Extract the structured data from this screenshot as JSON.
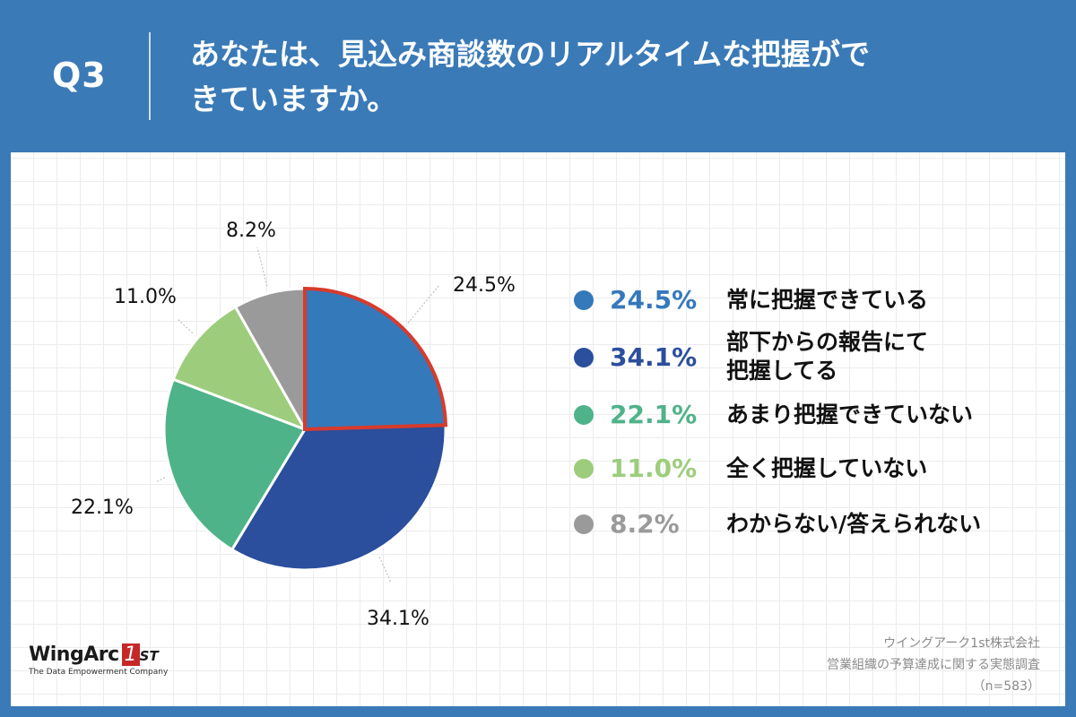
{
  "header": {
    "q_label": "Q3",
    "question_line1": "あなたは、見込み商談数のリアルタイムな把握がで",
    "question_line2": "きていますか。"
  },
  "chart_data": {
    "type": "pie",
    "title": "あなたは、見込み商談数のリアルタイムな把握ができていますか。",
    "slices": [
      {
        "label": "常に把握できている",
        "value": 24.5,
        "display": "24.5%",
        "color": "#3479ba",
        "highlight": true
      },
      {
        "label": "部下からの報告にて把握してる",
        "value": 34.1,
        "display": "34.1%",
        "color": "#2b4e9d",
        "highlight": false
      },
      {
        "label": "あまり把握できていない",
        "value": 22.1,
        "display": "22.1%",
        "color": "#4fb389",
        "highlight": false
      },
      {
        "label": "全く把握していない",
        "value": 11.0,
        "display": "11.0%",
        "color": "#9dcd7c",
        "highlight": false
      },
      {
        "label": "わからない/答えられない",
        "value": 8.2,
        "display": "8.2%",
        "color": "#9a9a9a",
        "highlight": false
      }
    ],
    "highlight_color": "#d83b2c",
    "n": 583
  },
  "legend": {
    "items": [
      {
        "pct": "24.5%",
        "line1": "常に把握できている",
        "line2": "",
        "color": "#3479ba"
      },
      {
        "pct": "34.1%",
        "line1": "部下からの報告にて",
        "line2": "把握してる",
        "color": "#2b4e9d"
      },
      {
        "pct": "22.1%",
        "line1": "あまり把握できていない",
        "line2": "",
        "color": "#4fb389"
      },
      {
        "pct": "11.0%",
        "line1": "全く把握していない",
        "line2": "",
        "color": "#9dcd7c"
      },
      {
        "pct": "8.2%",
        "line1": "わからない/答えられない",
        "line2": "",
        "color": "#9a9a9a"
      }
    ]
  },
  "logo": {
    "name": "WingArc",
    "one": "1",
    "st": "ST",
    "tagline": "The Data Empowerment Company"
  },
  "source": {
    "company": "ウイングアーク1st株式会社",
    "survey": "営業組織の予算達成に関する実態調査",
    "sample": "（n=583）"
  }
}
